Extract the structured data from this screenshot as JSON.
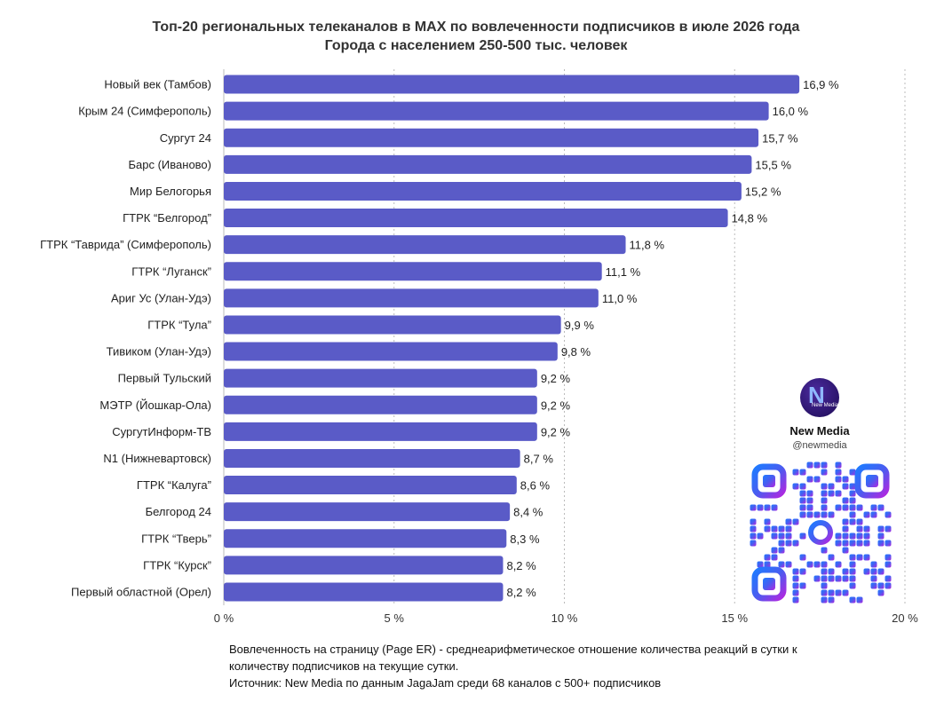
{
  "title_line1": "Топ-20 региональных телеканалов в MAX по вовлеченности подписчиков в июле 2026 года",
  "title_line2": "Города с населением 250-500 тыс. человек",
  "chart_data": {
    "type": "bar",
    "orientation": "horizontal",
    "categories": [
      "Новый век (Тамбов)",
      "Крым 24 (Симферополь)",
      "Сургут 24",
      "Барс (Иваново)",
      "Мир Белогорья",
      "ГТРК “Белгород”",
      "ГТРК “Таврида” (Симферополь)",
      "ГТРК “Луганск”",
      "Ариг Ус (Улан-Удэ)",
      "ГТРК “Тула”",
      "Тивиком (Улан-Удэ)",
      "Первый Тульский",
      "МЭТР (Йошкар-Ола)",
      "СургутИнформ-ТВ",
      "N1 (Нижневартовск)",
      "ГТРК “Калуга”",
      "Белгород 24",
      "ГТРК “Тверь”",
      "ГТРК “Курск”",
      "Первый областной (Орел)"
    ],
    "values": [
      16.9,
      16.0,
      15.7,
      15.5,
      15.2,
      14.8,
      11.8,
      11.1,
      11.0,
      9.9,
      9.8,
      9.2,
      9.2,
      9.2,
      8.7,
      8.6,
      8.4,
      8.3,
      8.2,
      8.2
    ],
    "value_labels": [
      "16,9 %",
      "16,0 %",
      "15,7 %",
      "15,5 %",
      "15,2 %",
      "14,8 %",
      "11,8 %",
      "11,1 %",
      "11,0 %",
      "9,9 %",
      "9,8 %",
      "9,2 %",
      "9,2 %",
      "9,2 %",
      "8,7 %",
      "8,6 %",
      "8,4 %",
      "8,3 %",
      "8,2 %",
      "8,2 %"
    ],
    "xlim": [
      0,
      20
    ],
    "xticks": [
      0,
      5,
      10,
      15,
      20
    ],
    "xtick_labels": [
      "0 %",
      "5 %",
      "10 %",
      "15 %",
      "20 %"
    ],
    "bar_color": "#5a5bc7",
    "grid": "vertical dotted"
  },
  "footnote_line1": "Вовлеченность на страницу (Page ER) - среднеарифметическое отношение количества реакций в сутки к",
  "footnote_line2": "количеству подписчиков на текущие сутки.",
  "footnote_line3": "Источник: New Media по данным JagaJam среди 68 каналов с 500+ подписчиков",
  "brand": {
    "logo_letter": "N",
    "logo_sub": "New Media",
    "name": "New Media",
    "handle": "@newmedia"
  }
}
